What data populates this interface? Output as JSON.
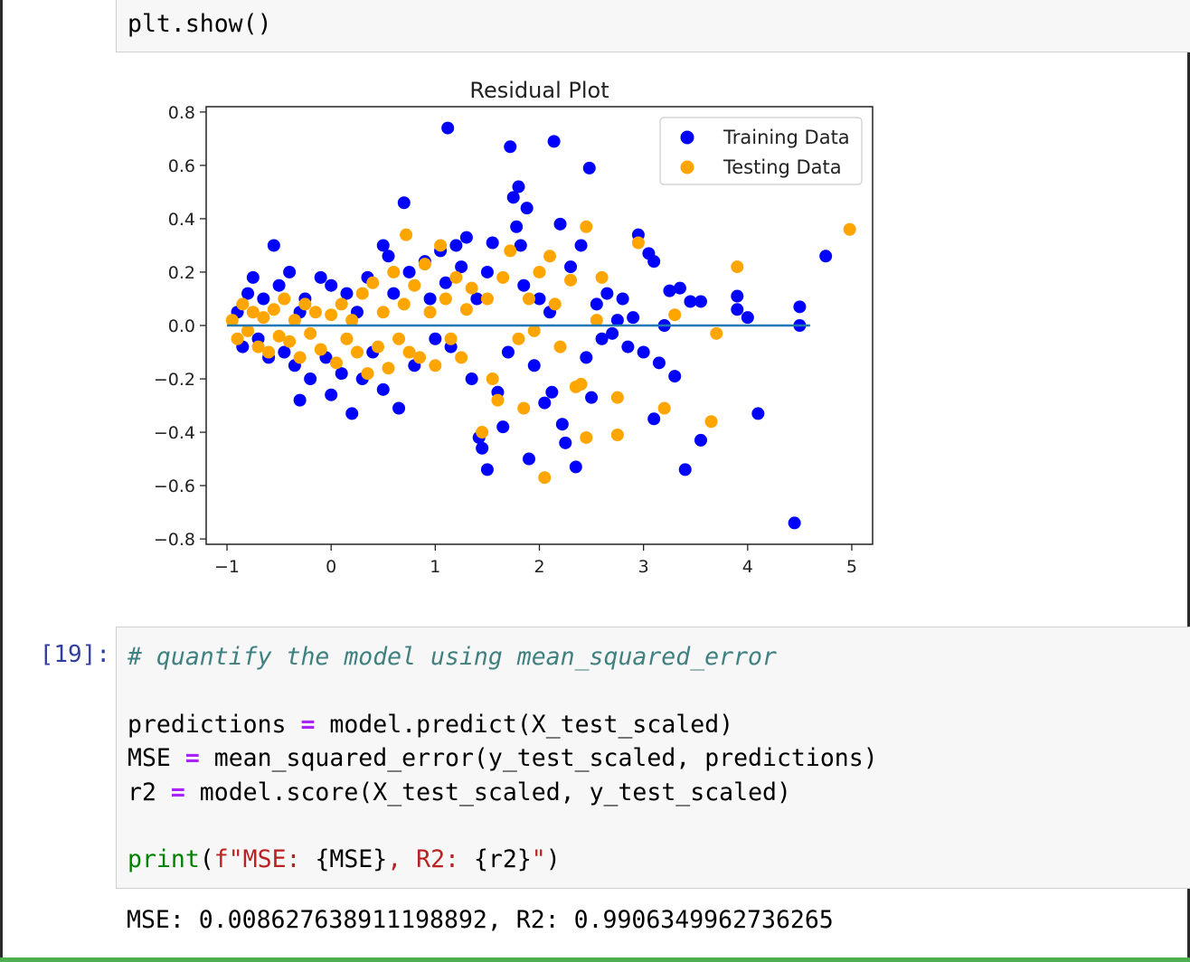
{
  "cells": {
    "top_code": "plt.show()",
    "main_prompt": "[19]:",
    "main_code": {
      "comment": "# quantify the model using mean_squared_error",
      "line_predictions_lhs": "predictions ",
      "line_predictions_op": "=",
      "line_predictions_rhs": " model.predict(X_test_scaled)",
      "line_mse_lhs": "MSE ",
      "line_mse_op": "=",
      "line_mse_rhs": " mean_squared_error(y_test_scaled, predictions)",
      "line_r2_lhs": "r2 ",
      "line_r2_op": "=",
      "line_r2_rhs": " model.score(X_test_scaled, y_test_scaled)",
      "print_fn": "print",
      "print_open": "(",
      "print_str1": "f\"MSE: ",
      "print_var1": "{MSE}",
      "print_str2": ", R2: ",
      "print_var2": "{r2}",
      "print_str3": "\"",
      "print_close": ")"
    },
    "output": "MSE: 0.008627638911198892, R2: 0.9906349962736265"
  },
  "colors": {
    "training": "#0000ff",
    "testing": "#ffa500",
    "hline": "#1f77b4"
  },
  "chart_data": {
    "type": "scatter",
    "title": "Residual Plot",
    "xlim": [
      -1.2,
      5.2
    ],
    "ylim": [
      -0.82,
      0.82
    ],
    "xticks": [
      -1,
      0,
      1,
      2,
      3,
      4,
      5
    ],
    "xtick_labels": [
      "−1",
      "0",
      "1",
      "2",
      "3",
      "4",
      "5"
    ],
    "yticks": [
      -0.8,
      -0.6,
      -0.4,
      -0.2,
      0.0,
      0.2,
      0.4,
      0.6,
      0.8
    ],
    "ytick_labels": [
      "−0.8",
      "−0.6",
      "−0.4",
      "−0.2",
      "0.0",
      "0.2",
      "0.4",
      "0.6",
      "0.8"
    ],
    "legend_position": "top-right",
    "hline": {
      "y": 0,
      "x_start": -1.0,
      "x_end": 4.6
    },
    "series": [
      {
        "name": "Training Data",
        "color": "#0000ff",
        "points": [
          [
            -0.9,
            0.05
          ],
          [
            -0.85,
            -0.08
          ],
          [
            -0.8,
            0.12
          ],
          [
            -0.75,
            0.18
          ],
          [
            -0.7,
            -0.05
          ],
          [
            -0.65,
            0.1
          ],
          [
            -0.6,
            -0.12
          ],
          [
            -0.55,
            0.3
          ],
          [
            -0.5,
            0.15
          ],
          [
            -0.45,
            -0.1
          ],
          [
            -0.4,
            0.2
          ],
          [
            -0.35,
            -0.15
          ],
          [
            -0.3,
            0.05
          ],
          [
            -0.3,
            -0.28
          ],
          [
            -0.25,
            0.1
          ],
          [
            -0.2,
            -0.2
          ],
          [
            -0.1,
            0.18
          ],
          [
            -0.05,
            -0.12
          ],
          [
            0.0,
            -0.26
          ],
          [
            0.0,
            0.15
          ],
          [
            0.1,
            -0.18
          ],
          [
            0.15,
            0.12
          ],
          [
            0.2,
            -0.33
          ],
          [
            0.25,
            0.05
          ],
          [
            0.3,
            -0.2
          ],
          [
            0.35,
            0.18
          ],
          [
            0.4,
            -0.1
          ],
          [
            0.5,
            0.3
          ],
          [
            0.5,
            -0.24
          ],
          [
            0.55,
            0.26
          ],
          [
            0.6,
            0.12
          ],
          [
            0.65,
            -0.31
          ],
          [
            0.7,
            0.46
          ],
          [
            0.75,
            0.2
          ],
          [
            0.8,
            -0.15
          ],
          [
            0.9,
            0.24
          ],
          [
            0.95,
            0.1
          ],
          [
            1.0,
            -0.05
          ],
          [
            1.05,
            0.28
          ],
          [
            1.1,
            0.16
          ],
          [
            1.12,
            0.74
          ],
          [
            1.15,
            -0.08
          ],
          [
            1.2,
            0.3
          ],
          [
            1.25,
            0.22
          ],
          [
            1.3,
            0.33
          ],
          [
            1.35,
            -0.2
          ],
          [
            1.4,
            0.1
          ],
          [
            1.42,
            -0.42
          ],
          [
            1.45,
            -0.46
          ],
          [
            1.5,
            -0.54
          ],
          [
            1.5,
            0.2
          ],
          [
            1.55,
            0.31
          ],
          [
            1.6,
            -0.25
          ],
          [
            1.65,
            -0.38
          ],
          [
            1.7,
            -0.1
          ],
          [
            1.72,
            0.67
          ],
          [
            1.75,
            0.48
          ],
          [
            1.78,
            0.37
          ],
          [
            1.8,
            0.52
          ],
          [
            1.82,
            0.3
          ],
          [
            1.85,
            0.15
          ],
          [
            1.88,
            0.44
          ],
          [
            1.9,
            -0.5
          ],
          [
            1.95,
            -0.15
          ],
          [
            2.0,
            0.1
          ],
          [
            2.05,
            -0.29
          ],
          [
            2.1,
            0.05
          ],
          [
            2.12,
            -0.25
          ],
          [
            2.14,
            0.69
          ],
          [
            2.2,
            0.38
          ],
          [
            2.22,
            -0.37
          ],
          [
            2.25,
            -0.44
          ],
          [
            2.3,
            0.22
          ],
          [
            2.35,
            -0.53
          ],
          [
            2.4,
            0.3
          ],
          [
            2.45,
            -0.12
          ],
          [
            2.48,
            0.59
          ],
          [
            2.5,
            -0.27
          ],
          [
            2.55,
            0.08
          ],
          [
            2.6,
            -0.05
          ],
          [
            2.65,
            0.12
          ],
          [
            2.7,
            -0.03
          ],
          [
            2.75,
            0.02
          ],
          [
            2.8,
            0.1
          ],
          [
            2.85,
            -0.08
          ],
          [
            2.9,
            0.03
          ],
          [
            2.95,
            0.34
          ],
          [
            3.0,
            -0.1
          ],
          [
            3.05,
            0.27
          ],
          [
            3.1,
            -0.35
          ],
          [
            3.1,
            0.24
          ],
          [
            3.15,
            -0.14
          ],
          [
            3.2,
            0.0
          ],
          [
            3.25,
            0.13
          ],
          [
            3.3,
            -0.19
          ],
          [
            3.35,
            0.14
          ],
          [
            3.4,
            -0.54
          ],
          [
            3.45,
            0.09
          ],
          [
            3.55,
            0.09
          ],
          [
            3.55,
            -0.43
          ],
          [
            3.9,
            0.11
          ],
          [
            3.9,
            0.06
          ],
          [
            4.0,
            0.03
          ],
          [
            4.1,
            -0.33
          ],
          [
            4.45,
            -0.74
          ],
          [
            4.5,
            0.07
          ],
          [
            4.5,
            0.0
          ],
          [
            4.75,
            0.26
          ]
        ]
      },
      {
        "name": "Testing Data",
        "color": "#ffa500",
        "points": [
          [
            -0.95,
            0.02
          ],
          [
            -0.9,
            -0.05
          ],
          [
            -0.85,
            0.08
          ],
          [
            -0.8,
            -0.02
          ],
          [
            -0.75,
            0.05
          ],
          [
            -0.7,
            -0.08
          ],
          [
            -0.65,
            0.03
          ],
          [
            -0.6,
            -0.1
          ],
          [
            -0.55,
            0.06
          ],
          [
            -0.5,
            -0.04
          ],
          [
            -0.45,
            0.1
          ],
          [
            -0.4,
            -0.06
          ],
          [
            -0.35,
            0.02
          ],
          [
            -0.3,
            -0.12
          ],
          [
            -0.25,
            0.08
          ],
          [
            -0.2,
            -0.03
          ],
          [
            -0.15,
            0.05
          ],
          [
            -0.1,
            -0.09
          ],
          [
            0.0,
            0.04
          ],
          [
            0.05,
            -0.14
          ],
          [
            0.1,
            0.08
          ],
          [
            0.15,
            -0.05
          ],
          [
            0.2,
            0.02
          ],
          [
            0.25,
            -0.1
          ],
          [
            0.3,
            0.12
          ],
          [
            0.35,
            -0.18
          ],
          [
            0.4,
            0.16
          ],
          [
            0.45,
            -0.08
          ],
          [
            0.5,
            0.05
          ],
          [
            0.55,
            -0.16
          ],
          [
            0.6,
            0.2
          ],
          [
            0.65,
            -0.05
          ],
          [
            0.7,
            0.08
          ],
          [
            0.72,
            0.34
          ],
          [
            0.75,
            -0.1
          ],
          [
            0.8,
            0.15
          ],
          [
            0.85,
            -0.12
          ],
          [
            0.9,
            0.23
          ],
          [
            0.95,
            0.05
          ],
          [
            1.0,
            -0.15
          ],
          [
            1.05,
            0.3
          ],
          [
            1.1,
            0.1
          ],
          [
            1.15,
            -0.05
          ],
          [
            1.2,
            0.18
          ],
          [
            1.25,
            -0.12
          ],
          [
            1.3,
            0.06
          ],
          [
            1.35,
            0.14
          ],
          [
            1.45,
            -0.4
          ],
          [
            1.5,
            0.1
          ],
          [
            1.55,
            -0.2
          ],
          [
            1.6,
            -0.28
          ],
          [
            1.65,
            0.18
          ],
          [
            1.72,
            0.28
          ],
          [
            1.8,
            -0.05
          ],
          [
            1.85,
            -0.31
          ],
          [
            1.9,
            0.1
          ],
          [
            1.95,
            -0.02
          ],
          [
            2.0,
            0.2
          ],
          [
            2.05,
            -0.57
          ],
          [
            2.1,
            0.26
          ],
          [
            2.15,
            0.08
          ],
          [
            2.2,
            -0.08
          ],
          [
            2.3,
            0.17
          ],
          [
            2.35,
            -0.23
          ],
          [
            2.4,
            -0.22
          ],
          [
            2.45,
            0.37
          ],
          [
            2.45,
            -0.42
          ],
          [
            2.55,
            0.02
          ],
          [
            2.6,
            0.18
          ],
          [
            2.75,
            -0.27
          ],
          [
            2.75,
            -0.41
          ],
          [
            2.95,
            0.31
          ],
          [
            3.2,
            -0.31
          ],
          [
            3.3,
            0.04
          ],
          [
            3.65,
            -0.36
          ],
          [
            3.7,
            -0.03
          ],
          [
            3.9,
            0.22
          ],
          [
            4.98,
            0.36
          ]
        ]
      }
    ]
  }
}
